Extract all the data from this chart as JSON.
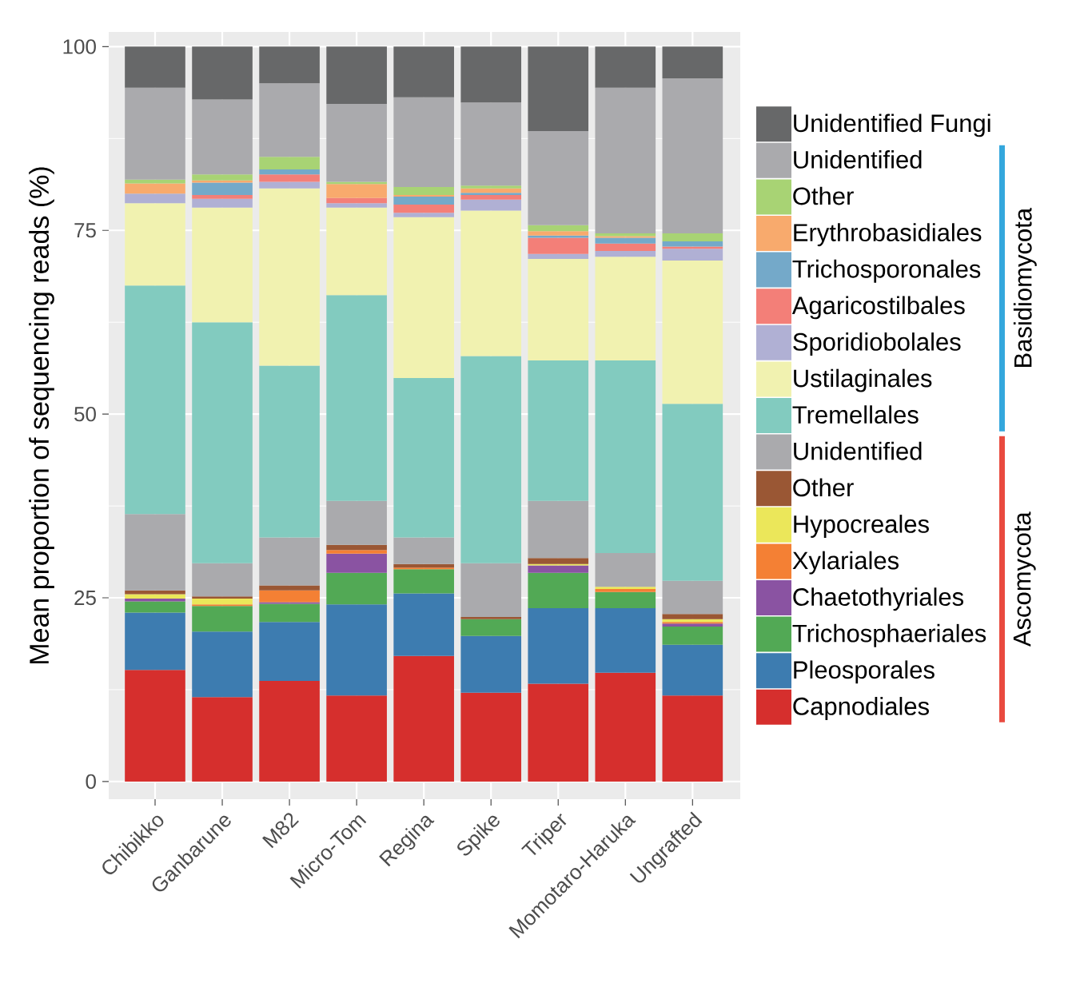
{
  "chart_data": {
    "type": "bar",
    "stacked": true,
    "ylabel": "Mean proportion of sequencing reads (%)",
    "categories": [
      "Chibikko",
      "Ganbarune",
      "M82",
      "Micro-Tom",
      "Regina",
      "Spike",
      "Triper",
      "Momotaro-Haruka",
      "Ungrafted"
    ],
    "ylim": [
      -2.4,
      102
    ],
    "yticks": [
      0,
      25,
      50,
      75,
      100
    ],
    "grid": true,
    "legend": "right",
    "annotations": [
      "Basidiomycota",
      "Ascomycota"
    ],
    "series": [
      {
        "name": "Capnodiales",
        "color": "#d62f2d",
        "values": [
          15.2,
          11.5,
          13.7,
          11.7,
          17.1,
          12.1,
          13.3,
          14.8,
          11.7
        ]
      },
      {
        "name": "Pleosporales",
        "color": "#3d7cb0",
        "values": [
          7.8,
          8.9,
          8.0,
          12.4,
          8.5,
          7.7,
          10.3,
          8.8,
          6.9
        ]
      },
      {
        "name": "Trichosphaeriales",
        "color": "#52a955",
        "values": [
          1.5,
          3.5,
          2.5,
          4.3,
          3.3,
          2.3,
          4.8,
          2.2,
          2.5
        ]
      },
      {
        "name": "Chaetothyriales",
        "color": "#8a53a2",
        "values": [
          0.4,
          0,
          0.2,
          2.6,
          0,
          0,
          1.0,
          0,
          0.4
        ]
      },
      {
        "name": "Xylariales",
        "color": "#f48034",
        "values": [
          0,
          0.2,
          1.6,
          0.5,
          0.2,
          0,
          0,
          0.4,
          0.2
        ]
      },
      {
        "name": "Hypocreales",
        "color": "#ebe75a",
        "values": [
          0.6,
          0.8,
          0,
          0,
          0,
          0,
          0.2,
          0.3,
          0.4
        ]
      },
      {
        "name": "Other",
        "color": "#9a5734",
        "values": [
          0.5,
          0.3,
          0.7,
          0.7,
          0.5,
          0.3,
          0.8,
          0,
          0.7
        ]
      },
      {
        "name": "Unidentified",
        "color": "#aaaaad",
        "values": [
          10.4,
          4.5,
          6.5,
          6.0,
          3.6,
          7.3,
          7.8,
          4.6,
          4.5
        ]
      },
      {
        "name": "Tremellales",
        "color": "#82cbbf",
        "values": [
          31.1,
          32.8,
          23.4,
          28.0,
          21.7,
          28.2,
          19.1,
          26.2,
          24.1
        ]
      },
      {
        "name": "Ustilaginales",
        "color": "#f1f2b0",
        "values": [
          11.2,
          15.6,
          24.1,
          11.9,
          21.9,
          19.8,
          13.8,
          14.1,
          19.5
        ]
      },
      {
        "name": "Sporidiobolales",
        "color": "#b0b0d4",
        "values": [
          1.3,
          1.2,
          0.9,
          0.6,
          0.6,
          1.5,
          0.7,
          0.8,
          1.6
        ]
      },
      {
        "name": "Agaricostilbales",
        "color": "#f37f78",
        "values": [
          0,
          0.5,
          1.0,
          0.7,
          1.1,
          0.6,
          2.2,
          1.0,
          0.3
        ]
      },
      {
        "name": "Trichosporonales",
        "color": "#74a9c9",
        "values": [
          0,
          1.7,
          0.7,
          0,
          1.1,
          0.3,
          0.3,
          0.8,
          0.7
        ]
      },
      {
        "name": "Erythrobasidiales",
        "color": "#f8aa6d",
        "values": [
          1.4,
          0.3,
          0,
          1.9,
          0.2,
          0.6,
          0.6,
          0.2,
          0
        ]
      },
      {
        "name": "Other",
        "color": "#a8d374",
        "values": [
          0.5,
          0.8,
          1.7,
          0.3,
          1.1,
          0.4,
          0.8,
          0.4,
          1.1
        ]
      },
      {
        "name": "Unidentified",
        "color": "#aaaaad",
        "values": [
          12.5,
          10.2,
          10.0,
          10.6,
          12.2,
          11.3,
          12.8,
          19.8,
          21.1
        ]
      },
      {
        "name": "Unidentified Fungi",
        "color": "#676869",
        "values": [
          5.6,
          7.2,
          5.0,
          7.8,
          6.9,
          7.6,
          11.5,
          5.6,
          4.3
        ]
      }
    ]
  }
}
